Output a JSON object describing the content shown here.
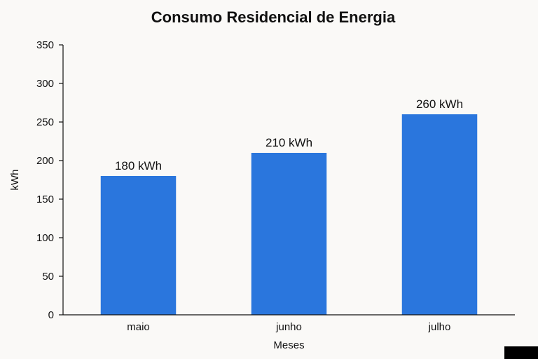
{
  "chart_data": {
    "type": "bar",
    "title": "Consumo Residencial de Energia",
    "xlabel": "Meses",
    "ylabel": "kWh",
    "categories": [
      "maio",
      "junho",
      "julho"
    ],
    "values": [
      180,
      210,
      260
    ],
    "data_labels": [
      "180 kWh",
      "210 kWh",
      "260 kWh"
    ],
    "ylim": [
      0,
      350
    ],
    "yticks": [
      0,
      50,
      100,
      150,
      200,
      250,
      300,
      350
    ],
    "grid": false,
    "bar_color": "#2a76dd"
  }
}
